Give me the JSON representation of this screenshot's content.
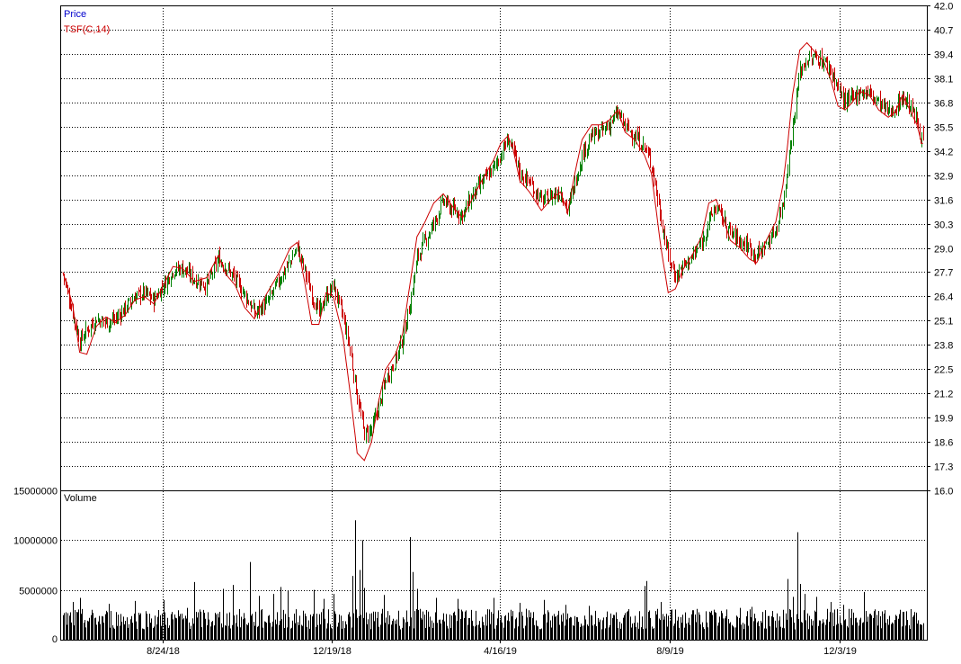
{
  "chart_data": [
    {
      "type": "candlestick",
      "legend": [
        {
          "name": "Price",
          "color": "#0000cc"
        },
        {
          "name": "TSF(C,14)",
          "color": "#cc0000"
        }
      ],
      "ylim": [
        16.0,
        42.0
      ],
      "yticks": [
        "42.0",
        "40.7",
        "39.4",
        "38.1",
        "36.8",
        "35.5",
        "34.2",
        "32.9",
        "31.6",
        "30.3",
        "29.0",
        "27.7",
        "26.4",
        "25.1",
        "23.8",
        "22.5",
        "21.2",
        "19.9",
        "18.6",
        "17.3",
        "16.0"
      ],
      "xtick_labels": [
        "8/24/18",
        "12/19/18",
        "4/16/19",
        "8/9/19",
        "12/3/19"
      ],
      "colors": {
        "up": "#008000",
        "down": "#cc0000",
        "tsf": "#cc0000",
        "grid": "#000000"
      },
      "price_path": [
        [
          0,
          27.6
        ],
        [
          8,
          25.5
        ],
        [
          14,
          24.0
        ],
        [
          20,
          24.6
        ],
        [
          28,
          25.2
        ],
        [
          36,
          25.0
        ],
        [
          44,
          25.2
        ],
        [
          52,
          25.8
        ],
        [
          60,
          26.4
        ],
        [
          68,
          26.6
        ],
        [
          76,
          26.2
        ],
        [
          84,
          27.0
        ],
        [
          92,
          27.8
        ],
        [
          100,
          27.9
        ],
        [
          110,
          27.3
        ],
        [
          120,
          27.0
        ],
        [
          130,
          28.4
        ],
        [
          136,
          28.0
        ],
        [
          144,
          27.3
        ],
        [
          152,
          26.5
        ],
        [
          160,
          25.5
        ],
        [
          170,
          26.0
        ],
        [
          180,
          27.2
        ],
        [
          190,
          28.3
        ],
        [
          196,
          29.0
        ],
        [
          202,
          27.8
        ],
        [
          208,
          26.5
        ],
        [
          214,
          25.5
        ],
        [
          220,
          26.4
        ],
        [
          226,
          27.0
        ],
        [
          234,
          25.3
        ],
        [
          240,
          23.5
        ],
        [
          246,
          21.0
        ],
        [
          252,
          19.0
        ],
        [
          258,
          19.3
        ],
        [
          264,
          20.5
        ],
        [
          270,
          22.0
        ],
        [
          278,
          23.0
        ],
        [
          284,
          24.2
        ],
        [
          290,
          26.0
        ],
        [
          296,
          28.5
        ],
        [
          302,
          29.3
        ],
        [
          310,
          30.3
        ],
        [
          318,
          31.5
        ],
        [
          326,
          31.0
        ],
        [
          334,
          30.8
        ],
        [
          342,
          31.8
        ],
        [
          350,
          32.5
        ],
        [
          360,
          33.3
        ],
        [
          366,
          34.0
        ],
        [
          372,
          34.8
        ],
        [
          376,
          34.2
        ],
        [
          382,
          33.0
        ],
        [
          390,
          32.5
        ],
        [
          400,
          31.5
        ],
        [
          408,
          31.8
        ],
        [
          416,
          32.0
        ],
        [
          422,
          31.0
        ],
        [
          428,
          32.5
        ],
        [
          434,
          34.0
        ],
        [
          442,
          35.0
        ],
        [
          450,
          35.2
        ],
        [
          456,
          35.6
        ],
        [
          464,
          36.2
        ],
        [
          470,
          35.5
        ],
        [
          478,
          35.0
        ],
        [
          486,
          34.4
        ],
        [
          492,
          33.5
        ],
        [
          496,
          32.0
        ],
        [
          500,
          30.5
        ],
        [
          506,
          28.5
        ],
        [
          512,
          27.5
        ],
        [
          518,
          28.0
        ],
        [
          526,
          28.5
        ],
        [
          534,
          29.3
        ],
        [
          540,
          30.5
        ],
        [
          546,
          31.2
        ],
        [
          552,
          30.5
        ],
        [
          558,
          29.8
        ],
        [
          566,
          29.4
        ],
        [
          574,
          29.0
        ],
        [
          580,
          28.6
        ],
        [
          588,
          29.2
        ],
        [
          596,
          30.0
        ],
        [
          602,
          31.5
        ],
        [
          606,
          33.5
        ],
        [
          610,
          35.5
        ],
        [
          616,
          38.5
        ],
        [
          622,
          39.1
        ],
        [
          630,
          39.2
        ],
        [
          636,
          39.0
        ],
        [
          642,
          38.5
        ],
        [
          648,
          37.5
        ],
        [
          654,
          36.8
        ],
        [
          660,
          37.0
        ],
        [
          666,
          37.4
        ],
        [
          674,
          37.3
        ],
        [
          682,
          36.8
        ],
        [
          690,
          36.3
        ],
        [
          696,
          36.5
        ],
        [
          702,
          37.1
        ],
        [
          708,
          36.6
        ],
        [
          714,
          35.8
        ],
        [
          718,
          34.8
        ]
      ],
      "tsf_path": [
        [
          0,
          27.7
        ],
        [
          8,
          26.0
        ],
        [
          14,
          23.4
        ],
        [
          20,
          23.3
        ],
        [
          28,
          24.8
        ],
        [
          36,
          25.3
        ],
        [
          44,
          25.0
        ],
        [
          52,
          25.4
        ],
        [
          60,
          26.2
        ],
        [
          68,
          26.4
        ],
        [
          76,
          26.0
        ],
        [
          84,
          27.0
        ],
        [
          92,
          28.0
        ],
        [
          100,
          27.9
        ],
        [
          110,
          27.2
        ],
        [
          120,
          27.4
        ],
        [
          130,
          28.6
        ],
        [
          136,
          27.6
        ],
        [
          144,
          27.0
        ],
        [
          152,
          25.8
        ],
        [
          160,
          25.2
        ],
        [
          170,
          26.5
        ],
        [
          180,
          27.6
        ],
        [
          190,
          29.0
        ],
        [
          196,
          29.3
        ],
        [
          202,
          27.2
        ],
        [
          208,
          24.9
        ],
        [
          214,
          24.9
        ],
        [
          220,
          26.6
        ],
        [
          226,
          26.4
        ],
        [
          234,
          24.3
        ],
        [
          240,
          21.3
        ],
        [
          246,
          18.0
        ],
        [
          252,
          17.6
        ],
        [
          258,
          18.6
        ],
        [
          264,
          20.8
        ],
        [
          270,
          22.5
        ],
        [
          278,
          23.3
        ],
        [
          284,
          24.4
        ],
        [
          290,
          27.0
        ],
        [
          296,
          29.6
        ],
        [
          302,
          30.3
        ],
        [
          310,
          31.4
        ],
        [
          318,
          31.9
        ],
        [
          326,
          31.2
        ],
        [
          334,
          30.6
        ],
        [
          342,
          31.6
        ],
        [
          350,
          32.6
        ],
        [
          360,
          33.7
        ],
        [
          366,
          34.6
        ],
        [
          372,
          35.0
        ],
        [
          376,
          34.4
        ],
        [
          382,
          32.6
        ],
        [
          390,
          32.0
        ],
        [
          400,
          31.0
        ],
        [
          408,
          31.6
        ],
        [
          416,
          32.0
        ],
        [
          422,
          30.9
        ],
        [
          428,
          33.0
        ],
        [
          434,
          34.8
        ],
        [
          442,
          35.6
        ],
        [
          450,
          35.6
        ],
        [
          456,
          35.8
        ],
        [
          464,
          36.4
        ],
        [
          470,
          35.2
        ],
        [
          478,
          34.8
        ],
        [
          486,
          34.0
        ],
        [
          492,
          33.0
        ],
        [
          496,
          31.0
        ],
        [
          500,
          29.0
        ],
        [
          506,
          26.6
        ],
        [
          512,
          26.8
        ],
        [
          518,
          27.8
        ],
        [
          526,
          28.6
        ],
        [
          534,
          29.6
        ],
        [
          540,
          31.4
        ],
        [
          546,
          31.6
        ],
        [
          552,
          30.6
        ],
        [
          558,
          29.4
        ],
        [
          566,
          29.0
        ],
        [
          574,
          28.4
        ],
        [
          580,
          28.2
        ],
        [
          588,
          29.4
        ],
        [
          596,
          30.4
        ],
        [
          602,
          32.4
        ],
        [
          606,
          34.6
        ],
        [
          610,
          37.2
        ],
        [
          616,
          39.6
        ],
        [
          622,
          40.0
        ],
        [
          630,
          39.4
        ],
        [
          636,
          39.0
        ],
        [
          642,
          38.0
        ],
        [
          648,
          36.6
        ],
        [
          654,
          36.4
        ],
        [
          660,
          36.8
        ],
        [
          666,
          37.4
        ],
        [
          674,
          37.2
        ],
        [
          682,
          36.4
        ],
        [
          690,
          36.0
        ],
        [
          696,
          36.3
        ],
        [
          702,
          37.2
        ],
        [
          708,
          36.4
        ],
        [
          714,
          35.6
        ],
        [
          718,
          34.6
        ]
      ],
      "price_bars": 720
    },
    {
      "type": "bar",
      "legend": [
        {
          "name": "Volume",
          "color": "#000000"
        }
      ],
      "ylim": [
        0,
        15000000
      ],
      "yticks": [
        "15000000",
        "10000000",
        "5000000",
        "0"
      ],
      "baseline_volume": 2300000,
      "spikes": [
        [
          8,
          3800000
        ],
        [
          14,
          4200000
        ],
        [
          38,
          3600000
        ],
        [
          60,
          3900000
        ],
        [
          84,
          4000000
        ],
        [
          104,
          3200000
        ],
        [
          110,
          5800000
        ],
        [
          134,
          5100000
        ],
        [
          142,
          5500000
        ],
        [
          156,
          7800000
        ],
        [
          164,
          4400000
        ],
        [
          176,
          4600000
        ],
        [
          182,
          5300000
        ],
        [
          188,
          4900000
        ],
        [
          210,
          5000000
        ],
        [
          218,
          4100000
        ],
        [
          226,
          4600000
        ],
        [
          242,
          6400000
        ],
        [
          244,
          12000000
        ],
        [
          248,
          7000000
        ],
        [
          250,
          10000000
        ],
        [
          252,
          5200000
        ],
        [
          268,
          4500000
        ],
        [
          290,
          10300000
        ],
        [
          292,
          6800000
        ],
        [
          296,
          5100000
        ],
        [
          312,
          4200000
        ],
        [
          330,
          4100000
        ],
        [
          360,
          4200000
        ],
        [
          382,
          3700000
        ],
        [
          402,
          4000000
        ],
        [
          420,
          3500000
        ],
        [
          440,
          3400000
        ],
        [
          486,
          5400000
        ],
        [
          488,
          5900000
        ],
        [
          500,
          3800000
        ],
        [
          530,
          3100000
        ],
        [
          566,
          3200000
        ],
        [
          576,
          3300000
        ],
        [
          606,
          6100000
        ],
        [
          610,
          4300000
        ],
        [
          614,
          10800000
        ],
        [
          616,
          5600000
        ],
        [
          620,
          4600000
        ],
        [
          630,
          4300000
        ],
        [
          642,
          3800000
        ],
        [
          652,
          3500000
        ],
        [
          670,
          4800000
        ],
        [
          700,
          3000000
        ]
      ]
    }
  ]
}
